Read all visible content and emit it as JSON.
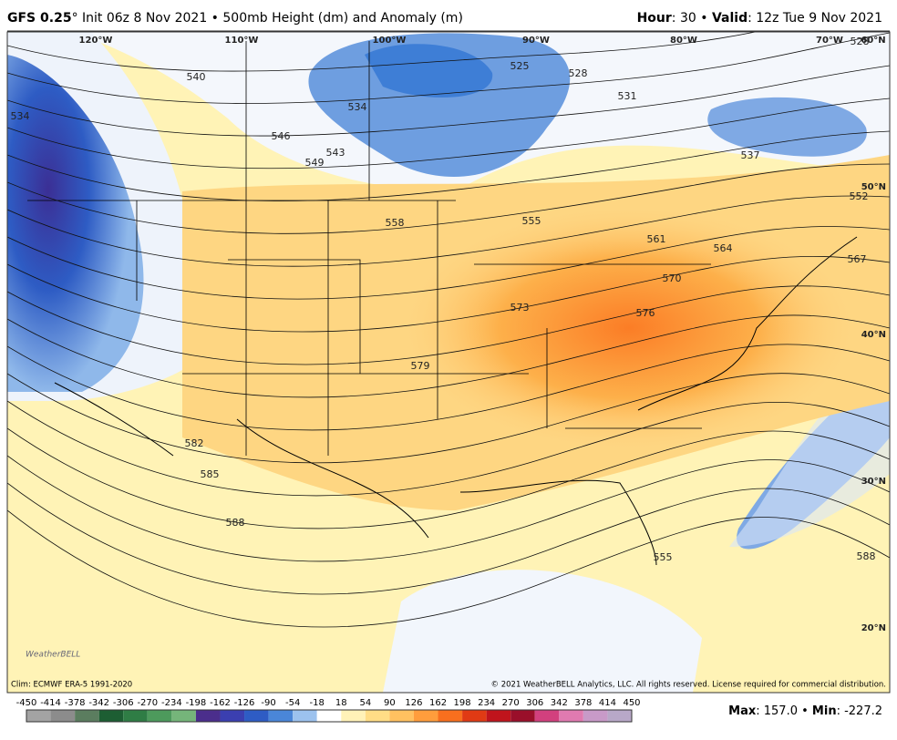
{
  "header": {
    "model": "GFS 0.25",
    "degree": "°",
    "init": "Init 06z 8 Nov 2021 • 500mb Height (dm) and Anomaly (m)",
    "hour_label": "Hour",
    "hour_value": ": 30 •",
    "valid_label": "Valid",
    "valid_value": ": 12z Tue 9 Nov 2021"
  },
  "map": {
    "longitude_labels": [
      "120°W",
      "110°W",
      "100°W",
      "90°W",
      "80°W",
      "70°W",
      "60°N"
    ],
    "latitude_labels": [
      "50°N",
      "40°N",
      "30°N",
      "20°N"
    ],
    "contour_labels": [
      540,
      534,
      525,
      528,
      531,
      537,
      534,
      546,
      543,
      549,
      558,
      555,
      561,
      564,
      567,
      570,
      573,
      576,
      579,
      582,
      585,
      588,
      588,
      552,
      528,
      555
    ],
    "logo": "WeatherBELL"
  },
  "footer": {
    "clim": "Clim: ECMWF ERA-5 1991-2020",
    "copyright": "© 2021 WeatherBELL Analytics, LLC. All rights reserved. License required for commercial distribution."
  },
  "colorbar": {
    "ticks": [
      -450,
      -414,
      -378,
      -342,
      -306,
      -270,
      -234,
      -198,
      -162,
      -126,
      -90,
      -54,
      -18,
      18,
      54,
      90,
      126,
      162,
      198,
      234,
      270,
      306,
      342,
      378,
      414,
      450
    ],
    "colors": [
      "#a3a3a3",
      "#8c8c8c",
      "#5b7d5f",
      "#1d5e33",
      "#2f7d45",
      "#4d9a5c",
      "#75b57a",
      "#4b2e8c",
      "#3b3fb0",
      "#2e5cc4",
      "#4a86d8",
      "#9cc2ee",
      "#ffffff",
      "#fff2b8",
      "#ffdd86",
      "#ffc160",
      "#ff9d3c",
      "#f86f1e",
      "#e03a14",
      "#c0141c",
      "#9a0f2a",
      "#d2407e",
      "#e07ab0",
      "#c89ac8",
      "#b8a8c8"
    ]
  },
  "stats": {
    "max_label": "Max",
    "max_value": ": 157.0 •",
    "min_label": "Min",
    "min_value": ": -227.2"
  }
}
